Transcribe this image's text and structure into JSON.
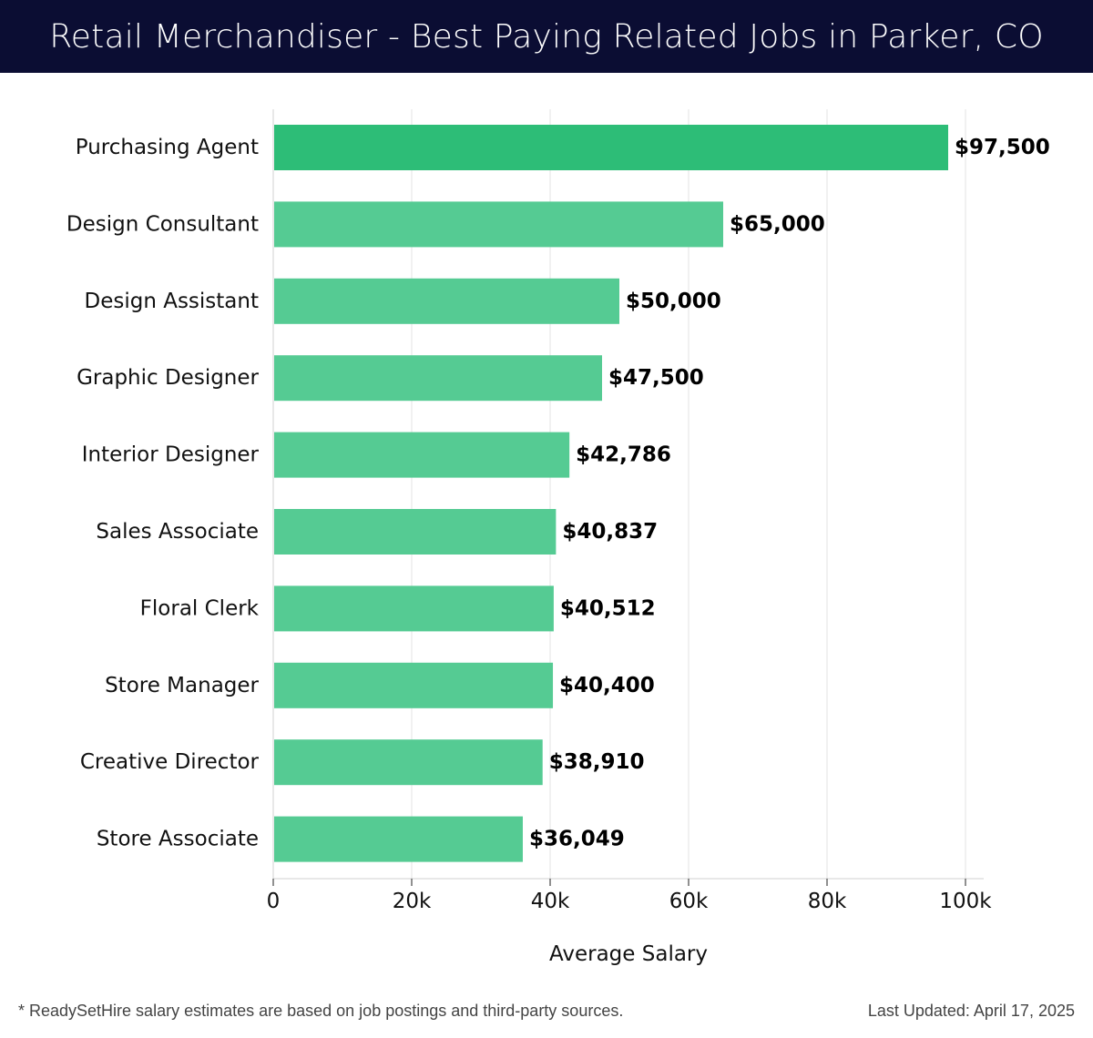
{
  "header": {
    "title": "Retail Merchandiser - Best Paying Related Jobs in Parker, CO"
  },
  "chart_data": {
    "type": "bar",
    "orientation": "horizontal",
    "title": "Retail Merchandiser - Best Paying Related Jobs in Parker, CO",
    "xlabel": "Average Salary",
    "ylabel": "",
    "xlim": [
      0,
      100000
    ],
    "x_ticks": [
      0,
      20000,
      40000,
      60000,
      80000,
      100000
    ],
    "x_tick_labels": [
      "0",
      "20k",
      "40k",
      "60k",
      "80k",
      "100k"
    ],
    "categories": [
      "Purchasing Agent",
      "Design Consultant",
      "Design Assistant",
      "Graphic Designer",
      "Interior Designer",
      "Sales Associate",
      "Floral Clerk",
      "Store Manager",
      "Creative Director",
      "Store Associate"
    ],
    "values": [
      97500,
      65000,
      50000,
      47500,
      42786,
      40837,
      40512,
      40400,
      38910,
      36049
    ],
    "value_labels": [
      "$97,500",
      "$65,000",
      "$50,000",
      "$47,500",
      "$42,786",
      "$40,837",
      "$40,512",
      "$40,400",
      "$38,910",
      "$36,049"
    ],
    "grid": true,
    "legend": "none",
    "colors": {
      "highlight_bar": "#2dbd77",
      "bar": "#55cb93",
      "grid": "#e3e3e3",
      "axis": "#d0d0d0"
    }
  },
  "footer": {
    "note": "* ReadySetHire salary estimates are based on job postings and third-party sources.",
    "updated": "Last Updated: April 17, 2025"
  },
  "colors": {
    "header_bg": "#0b0d33",
    "header_text": "#ffffff"
  }
}
